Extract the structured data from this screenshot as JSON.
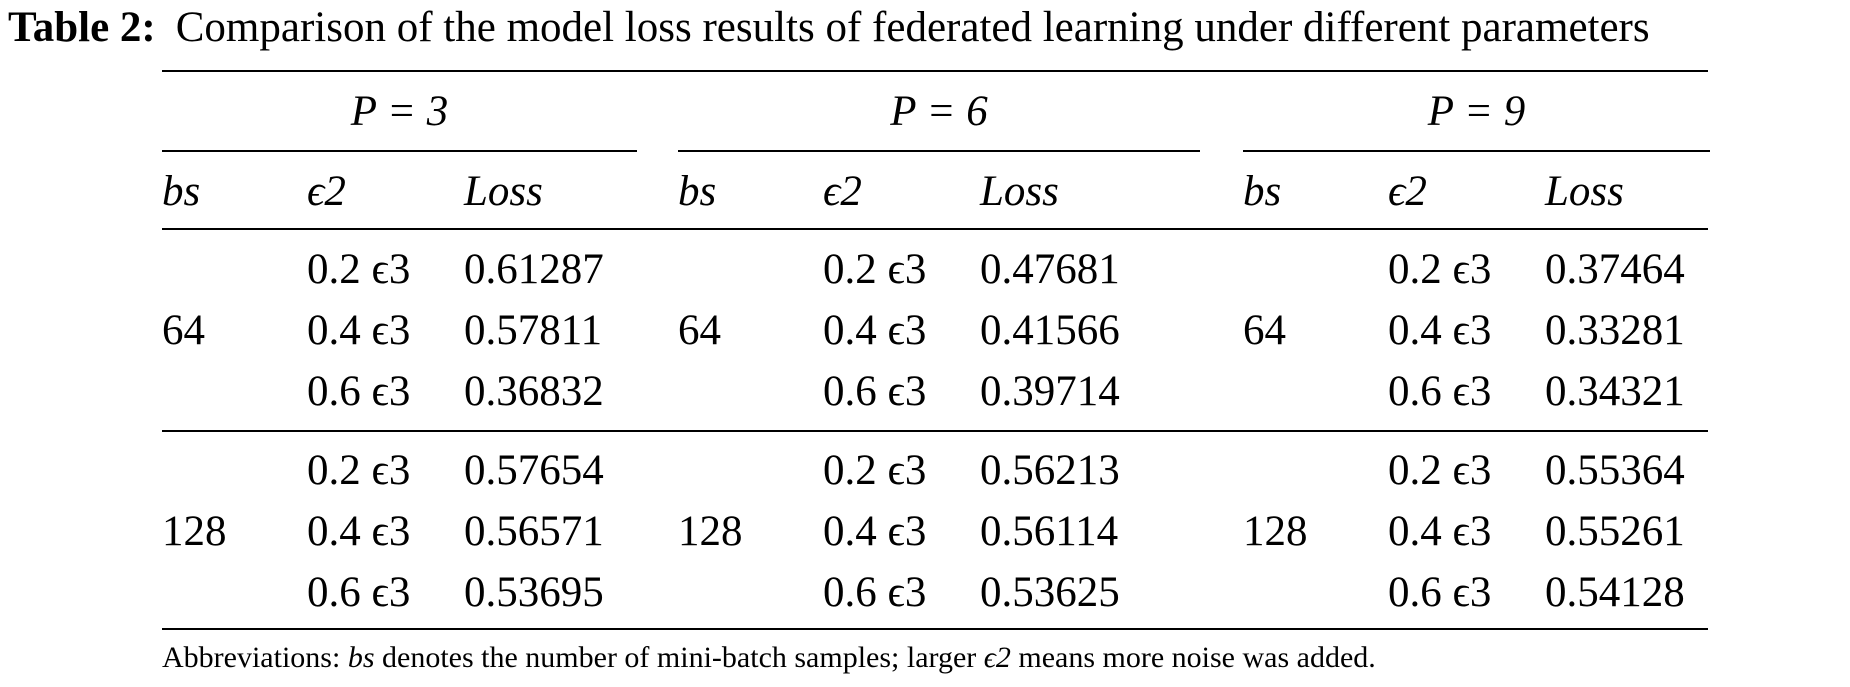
{
  "caption": {
    "label": "Table 2:",
    "text": "Comparison of the model loss results of federated learning under different parameters"
  },
  "groups": [
    {
      "title": "P = 3",
      "columns": [
        "bs",
        "ϵ2",
        "Loss"
      ],
      "blocks": [
        {
          "bs": "64",
          "rows": [
            {
              "eps": "0.2 ϵ3",
              "loss": "0.61287"
            },
            {
              "eps": "0.4 ϵ3",
              "loss": "0.57811"
            },
            {
              "eps": "0.6 ϵ3",
              "loss": "0.36832"
            }
          ]
        },
        {
          "bs": "128",
          "rows": [
            {
              "eps": "0.2 ϵ3",
              "loss": "0.57654"
            },
            {
              "eps": "0.4 ϵ3",
              "loss": "0.56571"
            },
            {
              "eps": "0.6 ϵ3",
              "loss": "0.53695"
            }
          ]
        }
      ]
    },
    {
      "title": "P = 6",
      "columns": [
        "bs",
        "ϵ2",
        "Loss"
      ],
      "blocks": [
        {
          "bs": "64",
          "rows": [
            {
              "eps": "0.2 ϵ3",
              "loss": "0.47681"
            },
            {
              "eps": "0.4 ϵ3",
              "loss": "0.41566"
            },
            {
              "eps": "0.6 ϵ3",
              "loss": "0.39714"
            }
          ]
        },
        {
          "bs": "128",
          "rows": [
            {
              "eps": "0.2 ϵ3",
              "loss": "0.56213"
            },
            {
              "eps": "0.4 ϵ3",
              "loss": "0.56114"
            },
            {
              "eps": "0.6 ϵ3",
              "loss": "0.53625"
            }
          ]
        }
      ]
    },
    {
      "title": "P = 9",
      "columns": [
        "bs",
        "ϵ2",
        "Loss"
      ],
      "blocks": [
        {
          "bs": "64",
          "rows": [
            {
              "eps": "0.2 ϵ3",
              "loss": "0.37464"
            },
            {
              "eps": "0.4 ϵ3",
              "loss": "0.33281"
            },
            {
              "eps": "0.6 ϵ3",
              "loss": "0.34321"
            }
          ]
        },
        {
          "bs": "128",
          "rows": [
            {
              "eps": "0.2 ϵ3",
              "loss": "0.55364"
            },
            {
              "eps": "0.4 ϵ3",
              "loss": "0.55261"
            },
            {
              "eps": "0.6 ϵ3",
              "loss": "0.54128"
            }
          ]
        }
      ]
    }
  ],
  "footnote": {
    "prefix": "Abbreviations:",
    "term_bs": "bs",
    "text_1": "denotes the number of mini-batch samples; larger",
    "term_eps": "ϵ2",
    "text_2": "means more noise was added."
  }
}
